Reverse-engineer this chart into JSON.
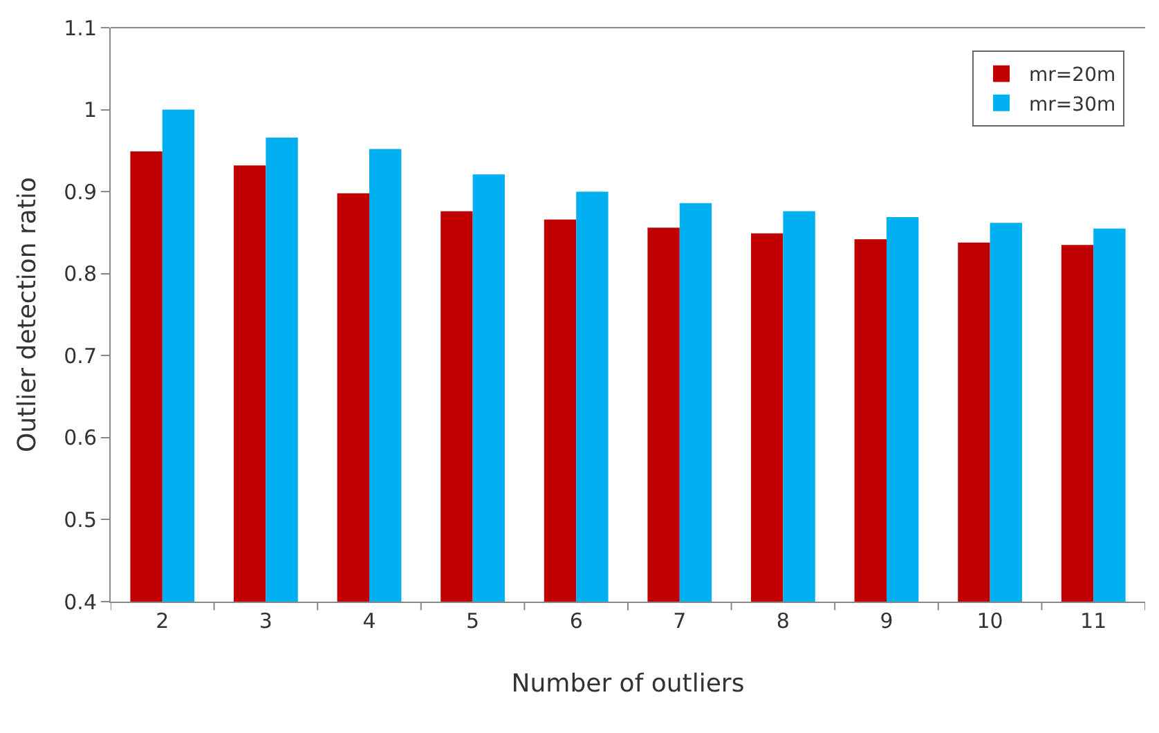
{
  "chart_data": {
    "type": "bar",
    "xlabel": "Number of outliers",
    "ylabel": "Outlier detection ratio",
    "categories": [
      "2",
      "3",
      "4",
      "5",
      "6",
      "7",
      "8",
      "9",
      "10",
      "11"
    ],
    "series": [
      {
        "name": "mr=20m",
        "color": "#c00000",
        "values": [
          0.949,
          0.932,
          0.898,
          0.876,
          0.866,
          0.856,
          0.849,
          0.842,
          0.838,
          0.835
        ]
      },
      {
        "name": "mr=30m",
        "color": "#00b0f0",
        "values": [
          1.0,
          0.966,
          0.952,
          0.921,
          0.9,
          0.886,
          0.876,
          0.869,
          0.862,
          0.855
        ]
      }
    ],
    "ylim": [
      0.4,
      1.1
    ],
    "yticks": [
      {
        "value": 0.4,
        "label": "0.4"
      },
      {
        "value": 0.5,
        "label": "0.5"
      },
      {
        "value": 0.6,
        "label": "0.6"
      },
      {
        "value": 0.7,
        "label": "0.7"
      },
      {
        "value": 0.8,
        "label": "0.8"
      },
      {
        "value": 0.9,
        "label": "0.9"
      },
      1,
      {
        "value": 1.1,
        "label": "1.1"
      }
    ],
    "legend": "top right"
  }
}
